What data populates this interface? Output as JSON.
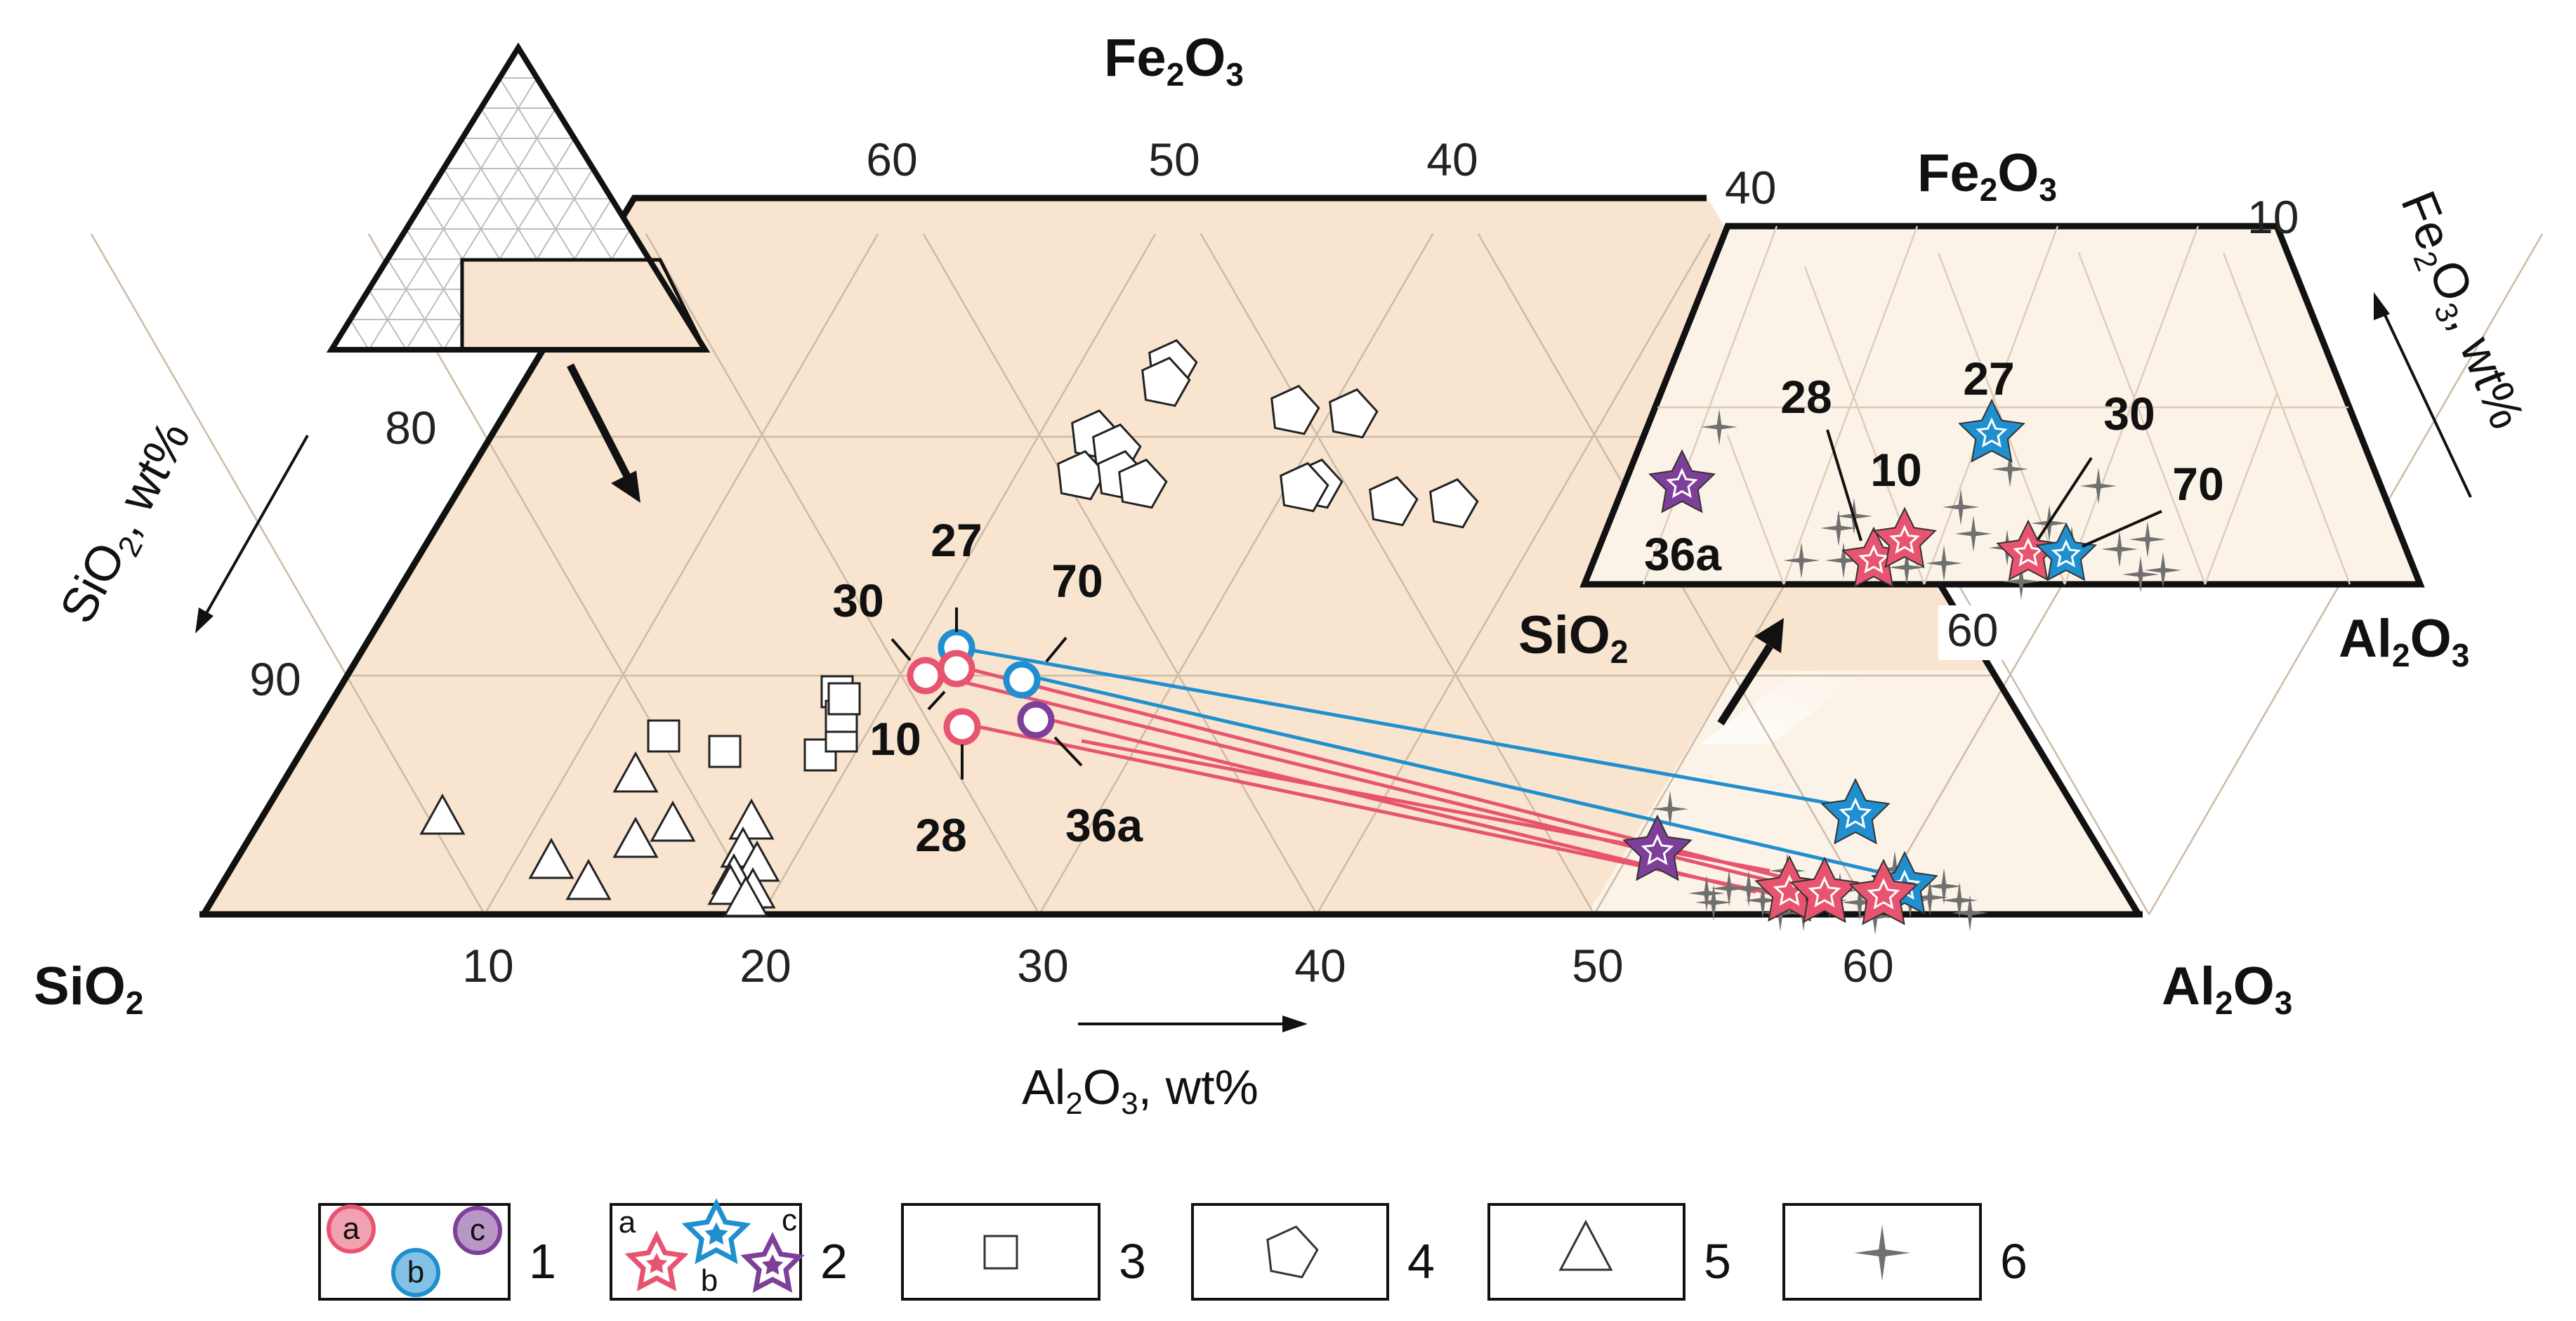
{
  "chart_data": {
    "type": "scatter",
    "diagram": "ternary",
    "components": [
      "SiO2",
      "Al2O3",
      "Fe2O3"
    ],
    "main_plot": {
      "corner_labels": {
        "left": {
          "main": "SiO",
          "sub": "2"
        },
        "right": {
          "main": "Al",
          "sub": "2",
          "main2": "O",
          "sub2": "3"
        },
        "top": {
          "main": "Fe",
          "sub": "2",
          "main2": "O",
          "sub2": "3"
        }
      },
      "al2o3_ticks": [
        "10",
        "20",
        "30",
        "40",
        "50",
        "60"
      ],
      "fe2o3_ticks": [
        "60",
        "50",
        "40",
        "40"
      ],
      "sio2_ticks": [
        "80",
        "90"
      ],
      "xlabel": {
        "main": "Al",
        "sub": "2",
        "main2": "O",
        "sub2": "3",
        "tail": ", wt%"
      },
      "ylabel": {
        "main": "SiO",
        "sub": "2",
        "tail": ", wt%"
      },
      "sample_labels": [
        "27",
        "70",
        "30",
        "10",
        "28",
        "36a"
      ],
      "groups": [
        {
          "id": "1a",
          "marker": "circle",
          "color": "#e8546f",
          "samples": [
            "30",
            "10",
            "28"
          ]
        },
        {
          "id": "1b",
          "marker": "circle",
          "color": "#1f8fcf",
          "samples": [
            "27",
            "70"
          ]
        },
        {
          "id": "1c",
          "marker": "circle",
          "color": "#7d3f98",
          "samples": [
            "36a"
          ]
        },
        {
          "id": "2a",
          "marker": "star",
          "color": "#e8546f"
        },
        {
          "id": "2b",
          "marker": "star",
          "color": "#1f8fcf"
        },
        {
          "id": "2c",
          "marker": "star",
          "color": "#7d3f98"
        },
        {
          "id": "3",
          "marker": "square",
          "count": 7
        },
        {
          "id": "4",
          "marker": "pentagon",
          "count": 12
        },
        {
          "id": "5",
          "marker": "triangle",
          "count": 13
        },
        {
          "id": "6",
          "marker": "cross-star",
          "count": 20
        }
      ]
    },
    "inset_plot": {
      "corner_labels": {
        "left": {
          "main": "SiO",
          "sub": "2"
        },
        "right": {
          "main": "Al",
          "sub": "2",
          "main2": "O",
          "sub2": "3"
        },
        "top": {
          "main": "Fe",
          "sub": "2",
          "main2": "O",
          "sub2": "3"
        }
      },
      "ticks": [
        "10",
        "60"
      ],
      "side_label": {
        "main": "Fe",
        "sub": "2",
        "main2": "O",
        "sub2": "3",
        "tail": ", wt%"
      },
      "sample_labels": [
        "27",
        "28",
        "10",
        "30",
        "70",
        "36a"
      ]
    },
    "legend": {
      "numbers": [
        "1",
        "2",
        "3",
        "4",
        "5",
        "6"
      ],
      "letters": [
        "a",
        "b",
        "c"
      ]
    },
    "colors": {
      "field_fill": "#f8e4cf",
      "field_fill_light": "#fcf3e8",
      "pink": "#e8546f",
      "blue": "#1f8fcf",
      "purple": "#7d3f98",
      "gray_star": "#707070"
    }
  }
}
